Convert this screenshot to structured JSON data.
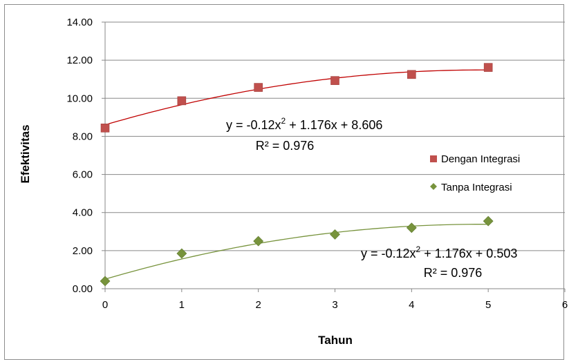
{
  "chart_data": {
    "type": "scatter",
    "xlabel": "Tahun",
    "ylabel": "Efektivitas",
    "xlim": [
      0,
      6
    ],
    "ylim": [
      0,
      14
    ],
    "x_ticks": [
      "0",
      "1",
      "2",
      "3",
      "4",
      "5",
      "6"
    ],
    "y_ticks": [
      "0.00",
      "2.00",
      "4.00",
      "6.00",
      "8.00",
      "10.00",
      "12.00",
      "14.00"
    ],
    "grid": "horizontal",
    "legend_position": "right",
    "series": [
      {
        "name": "Dengan Integrasi",
        "marker": "square",
        "color": "#c0504d",
        "x": [
          0,
          1,
          2,
          3,
          4,
          5
        ],
        "y": [
          8.44,
          9.87,
          10.57,
          10.93,
          11.25,
          11.62
        ],
        "trendline": {
          "type": "polynomial",
          "a": -0.12,
          "b": 1.176,
          "c": 8.606,
          "equation_prefix": "y = -0.12x",
          "equation_sup": "2",
          "equation_suffix": " + 1.176x + 8.606",
          "r2_label": "R² = 0.976",
          "color": "#c00000"
        }
      },
      {
        "name": "Tanpa Integrasi",
        "marker": "diamond",
        "color": "#77933c",
        "x": [
          0,
          1,
          2,
          3,
          4,
          5
        ],
        "y": [
          0.4,
          1.85,
          2.5,
          2.85,
          3.2,
          3.55
        ],
        "trendline": {
          "type": "polynomial",
          "a": -0.12,
          "b": 1.176,
          "c": 0.503,
          "equation_prefix": "y = -0.12x",
          "equation_sup": "2",
          "equation_suffix": " + 1.176x + 0.503",
          "r2_label": "R² = 0.976",
          "color": "#77933c"
        }
      }
    ]
  }
}
